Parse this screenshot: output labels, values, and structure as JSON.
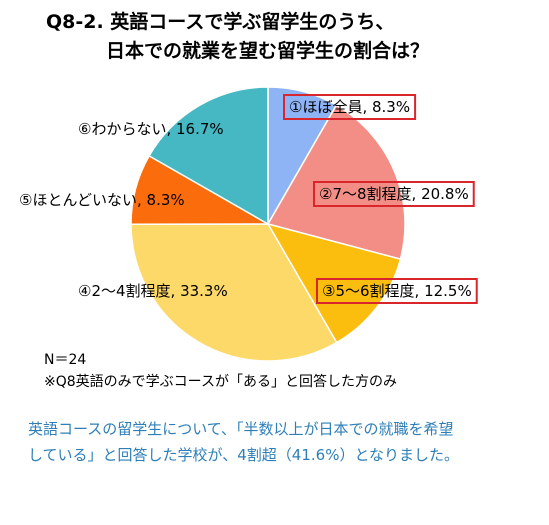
{
  "title": {
    "line1": "Q8-2. 英語コースで学ぶ留学生のうち、",
    "line2": "日本での就業を望む留学生の割合は？"
  },
  "chart_data": {
    "type": "pie",
    "start_angle_deg": 0,
    "direction": "clockwise",
    "slices": [
      {
        "label": "①ほぼ全員, 8.3%",
        "value": 8.3,
        "color": "#8eb4f5",
        "boxed": true
      },
      {
        "label": "②7～8割程度, 20.8%",
        "value": 20.8,
        "color": "#f28e86",
        "boxed": true
      },
      {
        "label": "③5～6割程度, 12.5%",
        "value": 12.5,
        "color": "#fbbd0e",
        "boxed": true
      },
      {
        "label": "④2～4割程度, 33.3%",
        "value": 33.3,
        "color": "#fdd96a",
        "boxed": false
      },
      {
        "label": "⑤ほとんどいない, 8.3%",
        "value": 8.3,
        "color": "#fb6d0c",
        "boxed": false
      },
      {
        "label": "⑥わからない, 16.7%",
        "value": 16.7,
        "color": "#45b8c3",
        "boxed": false
      }
    ],
    "highlight_box_color": "#d9262d"
  },
  "notes": {
    "n": "N＝24",
    "source": "※Q8英語のみで学ぶコースが「ある」と回答した方のみ"
  },
  "summary": {
    "line1": "英語コースの留学生について、「半数以上が日本での就職を希望",
    "line2": "している」と回答した学校が、4割超（41.6%）となりました。"
  }
}
